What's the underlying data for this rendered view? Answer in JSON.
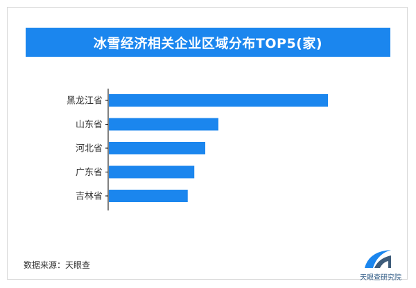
{
  "title": "冰雪经济相关企业区域分布TOP5(家)",
  "source": "数据来源：天眼查",
  "logo": {
    "name": "天眼查研究院",
    "icon": "tianyancha-logo-icon"
  },
  "colors": {
    "accent": "#1b86ee",
    "bar": "#1b86ee",
    "axis": "#000000"
  },
  "chart_data": {
    "type": "bar",
    "orientation": "horizontal",
    "categories": [
      "黑龙江省",
      "山东省",
      "河北省",
      "广东省",
      "吉林省"
    ],
    "values": [
      100,
      50,
      44,
      39,
      36
    ],
    "grid": false,
    "legend": "none",
    "xlim": [
      0,
      100
    ]
  }
}
